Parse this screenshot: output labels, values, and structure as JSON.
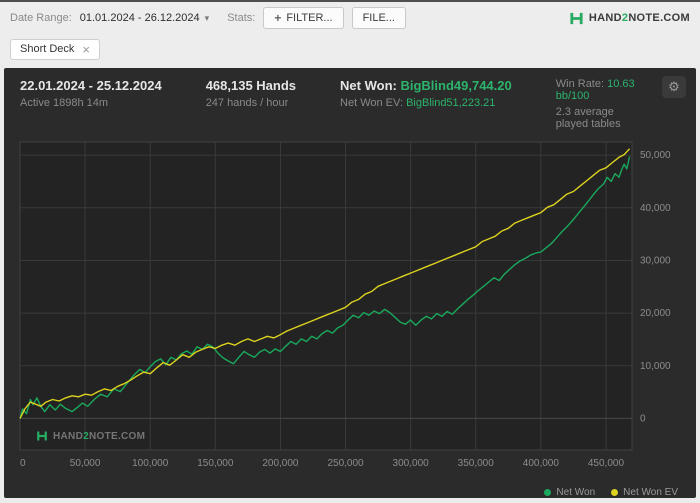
{
  "icons": {
    "caret": "▾",
    "plus": "+",
    "close": "×",
    "gear": "⚙"
  },
  "toolbar": {
    "date_range_label": "Date Range:",
    "date_range_value": "01.01.2024 - 26.12.2024",
    "stats_label": "Stats:",
    "filter_button": {
      "label": "FILTER..."
    },
    "file_button": {
      "label": "FILE..."
    },
    "logo": {
      "pre": "HAND",
      "mid": "2",
      "post": "NOTE.COM"
    }
  },
  "filters": {
    "chip_label": "Short Deck"
  },
  "summary": {
    "date_range": "22.01.2024 - 25.12.2024",
    "active_time": "Active 1898h 14m",
    "hands": "468,135 Hands",
    "hands_per_hour": "247 hands / hour",
    "net_won_label": "Net Won:",
    "net_won_value": "BigBlind49,744.20",
    "net_won_ev_label": "Net Won  EV:",
    "net_won_ev_value": "BigBlind51,223.21",
    "win_rate_label": "Win Rate:",
    "win_rate_value": "10.63 bb/100",
    "avg_tables": "2.3 average played tables"
  },
  "colors": {
    "accent_green": "#2cb46c",
    "net_won_line": "#1aa85c",
    "net_won_ev_line": "#ddd21f",
    "panel_bg": "#2b2b2b"
  },
  "chart_data": {
    "type": "line",
    "title": "",
    "xlabel": "",
    "ylabel": "",
    "grid": true,
    "legend_position": "bottom-right",
    "xlim": [
      0,
      470000
    ],
    "ylim": [
      -6000,
      52500
    ],
    "x_ticks": [
      0,
      50000,
      100000,
      150000,
      200000,
      250000,
      300000,
      350000,
      400000,
      450000
    ],
    "x_tick_labels": [
      "0",
      "50,000",
      "100,000",
      "150,000",
      "200,000",
      "250,000",
      "300,000",
      "350,000",
      "400,000",
      "450,000"
    ],
    "y_ticks": [
      0,
      10000,
      20000,
      30000,
      40000,
      50000
    ],
    "y_tick_labels": [
      "0",
      "10,000",
      "20,000",
      "30,000",
      "40,000",
      "50,000"
    ],
    "plot_bg": "#232323",
    "grid_color": "#3a3a3a",
    "zero_color": "#4a4a4a",
    "border_color": "#404040",
    "tick_color": "#8c8c8c",
    "watermark": {
      "pre": "HAND",
      "mid": "2",
      "post": "NOTE.COM"
    },
    "series": [
      {
        "name": "Net Won",
        "color": "#1aa85c",
        "final_value": 49744.2,
        "points": [
          [
            0,
            0
          ],
          [
            2000,
            1800
          ],
          [
            5000,
            900
          ],
          [
            8000,
            3600
          ],
          [
            10000,
            2600
          ],
          [
            13000,
            3900
          ],
          [
            16000,
            2300
          ],
          [
            19000,
            1300
          ],
          [
            23000,
            2600
          ],
          [
            27000,
            1600
          ],
          [
            31000,
            2700
          ],
          [
            35000,
            1900
          ],
          [
            40000,
            1300
          ],
          [
            44000,
            2100
          ],
          [
            48000,
            2900
          ],
          [
            52000,
            2300
          ],
          [
            57000,
            3600
          ],
          [
            62000,
            4600
          ],
          [
            67000,
            4100
          ],
          [
            72000,
            5600
          ],
          [
            77000,
            5100
          ],
          [
            82000,
            6600
          ],
          [
            87000,
            8100
          ],
          [
            92000,
            9300
          ],
          [
            96000,
            8700
          ],
          [
            100000,
            9800
          ],
          [
            104000,
            10800
          ],
          [
            108000,
            11300
          ],
          [
            112000,
            10200
          ],
          [
            116000,
            11600
          ],
          [
            120000,
            11100
          ],
          [
            124000,
            12300
          ],
          [
            128000,
            12800
          ],
          [
            132000,
            12200
          ],
          [
            136000,
            13600
          ],
          [
            140000,
            13100
          ],
          [
            144000,
            14100
          ],
          [
            148000,
            13600
          ],
          [
            152000,
            12400
          ],
          [
            156000,
            11500
          ],
          [
            160000,
            10900
          ],
          [
            164000,
            10400
          ],
          [
            168000,
            11600
          ],
          [
            172000,
            12700
          ],
          [
            176000,
            12100
          ],
          [
            180000,
            11600
          ],
          [
            184000,
            12600
          ],
          [
            188000,
            13100
          ],
          [
            192000,
            12400
          ],
          [
            196000,
            13200
          ],
          [
            200000,
            12700
          ],
          [
            204000,
            13700
          ],
          [
            208000,
            14600
          ],
          [
            212000,
            14100
          ],
          [
            216000,
            15100
          ],
          [
            220000,
            14600
          ],
          [
            224000,
            15600
          ],
          [
            228000,
            15100
          ],
          [
            232000,
            16100
          ],
          [
            236000,
            16700
          ],
          [
            240000,
            16200
          ],
          [
            244000,
            17200
          ],
          [
            248000,
            17700
          ],
          [
            252000,
            18700
          ],
          [
            256000,
            19600
          ],
          [
            260000,
            19100
          ],
          [
            264000,
            20100
          ],
          [
            268000,
            19600
          ],
          [
            272000,
            20400
          ],
          [
            276000,
            19900
          ],
          [
            280000,
            20700
          ],
          [
            284000,
            20100
          ],
          [
            288000,
            19200
          ],
          [
            292000,
            18300
          ],
          [
            296000,
            17900
          ],
          [
            300000,
            18700
          ],
          [
            304000,
            17700
          ],
          [
            308000,
            18700
          ],
          [
            312000,
            19400
          ],
          [
            316000,
            18900
          ],
          [
            320000,
            19900
          ],
          [
            324000,
            19400
          ],
          [
            328000,
            20300
          ],
          [
            332000,
            19800
          ],
          [
            336000,
            20800
          ],
          [
            340000,
            21700
          ],
          [
            344000,
            22600
          ],
          [
            348000,
            23400
          ],
          [
            352000,
            24300
          ],
          [
            356000,
            25100
          ],
          [
            360000,
            25900
          ],
          [
            364000,
            26700
          ],
          [
            368000,
            26200
          ],
          [
            372000,
            27400
          ],
          [
            376000,
            28300
          ],
          [
            380000,
            29200
          ],
          [
            384000,
            29900
          ],
          [
            388000,
            30400
          ],
          [
            392000,
            31000
          ],
          [
            396000,
            31400
          ],
          [
            400000,
            31600
          ],
          [
            404000,
            32400
          ],
          [
            408000,
            33200
          ],
          [
            412000,
            34300
          ],
          [
            416000,
            35400
          ],
          [
            420000,
            36400
          ],
          [
            424000,
            37500
          ],
          [
            428000,
            38700
          ],
          [
            432000,
            39900
          ],
          [
            436000,
            41100
          ],
          [
            440000,
            42400
          ],
          [
            444000,
            43600
          ],
          [
            448000,
            44500
          ],
          [
            451000,
            45800
          ],
          [
            454000,
            45000
          ],
          [
            457000,
            46500
          ],
          [
            460000,
            45800
          ],
          [
            462000,
            47200
          ],
          [
            464000,
            48300
          ],
          [
            466000,
            47400
          ],
          [
            468135,
            49744
          ]
        ]
      },
      {
        "name": "Net Won  EV",
        "color": "#ddd21f",
        "final_value": 51223.21,
        "points": [
          [
            0,
            0
          ],
          [
            4000,
            1900
          ],
          [
            8000,
            3100
          ],
          [
            12000,
            2700
          ],
          [
            16000,
            2300
          ],
          [
            20000,
            3100
          ],
          [
            25000,
            3600
          ],
          [
            30000,
            3300
          ],
          [
            35000,
            3900
          ],
          [
            40000,
            4300
          ],
          [
            45000,
            4100
          ],
          [
            50000,
            4600
          ],
          [
            55000,
            4400
          ],
          [
            60000,
            5100
          ],
          [
            65000,
            5600
          ],
          [
            70000,
            5300
          ],
          [
            75000,
            6100
          ],
          [
            80000,
            6600
          ],
          [
            85000,
            7300
          ],
          [
            90000,
            8100
          ],
          [
            95000,
            8800
          ],
          [
            100000,
            8500
          ],
          [
            105000,
            9600
          ],
          [
            110000,
            10600
          ],
          [
            115000,
            10100
          ],
          [
            120000,
            11100
          ],
          [
            125000,
            12100
          ],
          [
            130000,
            11600
          ],
          [
            135000,
            12600
          ],
          [
            140000,
            13100
          ],
          [
            145000,
            13600
          ],
          [
            150000,
            13300
          ],
          [
            155000,
            13900
          ],
          [
            160000,
            14300
          ],
          [
            165000,
            13900
          ],
          [
            170000,
            14600
          ],
          [
            175000,
            15100
          ],
          [
            180000,
            14600
          ],
          [
            185000,
            15100
          ],
          [
            190000,
            15600
          ],
          [
            195000,
            15300
          ],
          [
            200000,
            15900
          ],
          [
            205000,
            16600
          ],
          [
            210000,
            17100
          ],
          [
            215000,
            17600
          ],
          [
            220000,
            18100
          ],
          [
            225000,
            18600
          ],
          [
            230000,
            19100
          ],
          [
            235000,
            19600
          ],
          [
            240000,
            20100
          ],
          [
            245000,
            20600
          ],
          [
            250000,
            21100
          ],
          [
            255000,
            22100
          ],
          [
            260000,
            22600
          ],
          [
            265000,
            23600
          ],
          [
            270000,
            24100
          ],
          [
            275000,
            25100
          ],
          [
            280000,
            25600
          ],
          [
            285000,
            26100
          ],
          [
            290000,
            26600
          ],
          [
            295000,
            27100
          ],
          [
            300000,
            27600
          ],
          [
            305000,
            28100
          ],
          [
            310000,
            28600
          ],
          [
            315000,
            29100
          ],
          [
            320000,
            29600
          ],
          [
            325000,
            30100
          ],
          [
            330000,
            30600
          ],
          [
            335000,
            31100
          ],
          [
            340000,
            31600
          ],
          [
            345000,
            32100
          ],
          [
            350000,
            32600
          ],
          [
            355000,
            33600
          ],
          [
            360000,
            34100
          ],
          [
            365000,
            34600
          ],
          [
            370000,
            35600
          ],
          [
            375000,
            36100
          ],
          [
            380000,
            37100
          ],
          [
            385000,
            37600
          ],
          [
            390000,
            38100
          ],
          [
            395000,
            38600
          ],
          [
            400000,
            39100
          ],
          [
            405000,
            40100
          ],
          [
            410000,
            40600
          ],
          [
            415000,
            41600
          ],
          [
            420000,
            42600
          ],
          [
            425000,
            43100
          ],
          [
            430000,
            44100
          ],
          [
            435000,
            45100
          ],
          [
            440000,
            46100
          ],
          [
            445000,
            47100
          ],
          [
            450000,
            47600
          ],
          [
            455000,
            48600
          ],
          [
            460000,
            49600
          ],
          [
            464000,
            50100
          ],
          [
            468135,
            51223
          ]
        ]
      }
    ]
  }
}
